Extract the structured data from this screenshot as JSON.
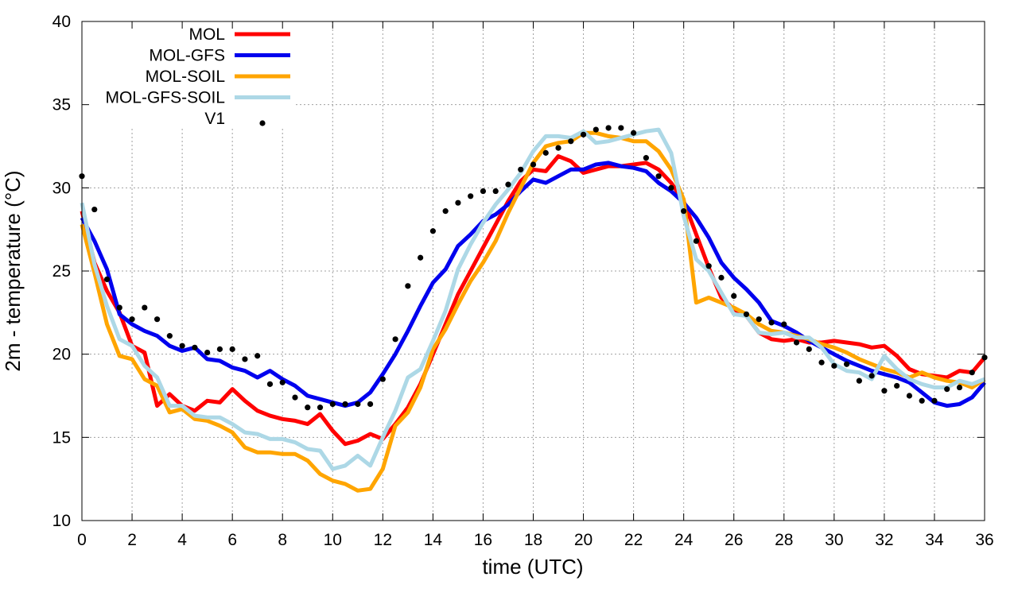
{
  "chart_data": {
    "type": "line",
    "title": "",
    "xlabel": "time (UTC)",
    "ylabel": "2m - temperature (°C)",
    "xlim": [
      0,
      36
    ],
    "ylim": [
      10,
      40
    ],
    "xticks": [
      0,
      2,
      4,
      6,
      8,
      10,
      12,
      14,
      16,
      18,
      20,
      22,
      24,
      26,
      28,
      30,
      32,
      34,
      36
    ],
    "yticks": [
      10,
      15,
      20,
      25,
      30,
      35,
      40
    ],
    "grid": true,
    "legend_position": "top-left",
    "series": [
      {
        "name": "MOL",
        "color": "#ff0000",
        "style": "line",
        "x": [
          0,
          0.5,
          1,
          1.5,
          2,
          2.5,
          3,
          3.5,
          4,
          4.5,
          5,
          5.5,
          6,
          6.5,
          7,
          7.5,
          8,
          8.5,
          9,
          9.5,
          10,
          10.5,
          11,
          11.5,
          12,
          12.5,
          13,
          13.5,
          14,
          14.5,
          15,
          15.5,
          16,
          16.5,
          17,
          17.5,
          18,
          18.5,
          19,
          19.5,
          20,
          20.5,
          21,
          21.5,
          22,
          22.5,
          23,
          23.5,
          24,
          24.5,
          25,
          25.5,
          26,
          26.5,
          27,
          27.5,
          28,
          28.5,
          29,
          29.5,
          30,
          30.5,
          31,
          31.5,
          32,
          32.5,
          33,
          33.5,
          34,
          34.5,
          35,
          35.5,
          36
        ],
        "y": [
          28.6,
          25.5,
          23.8,
          22.5,
          20.5,
          20.1,
          16.9,
          17.6,
          16.9,
          16.6,
          17.2,
          17.1,
          17.9,
          17.2,
          16.6,
          16.3,
          16.1,
          16.0,
          15.8,
          16.4,
          15.4,
          14.6,
          14.8,
          15.2,
          14.9,
          15.8,
          16.8,
          18.2,
          20.0,
          21.8,
          23.6,
          25.0,
          26.4,
          27.8,
          29.2,
          30.4,
          31.1,
          31.0,
          31.9,
          31.6,
          30.9,
          31.1,
          31.3,
          31.3,
          31.4,
          31.5,
          31.1,
          30.3,
          29.2,
          27.2,
          25.2,
          23.4,
          22.7,
          22.3,
          21.3,
          20.9,
          20.8,
          20.9,
          20.7,
          20.7,
          20.8,
          20.7,
          20.6,
          20.4,
          20.5,
          19.9,
          19.1,
          18.8,
          18.7,
          18.6,
          19.0,
          18.9,
          19.8
        ]
      },
      {
        "name": "MOL-GFS",
        "color": "#0000ee",
        "style": "line",
        "x": [
          0,
          0.5,
          1,
          1.5,
          2,
          2.5,
          3,
          3.5,
          4,
          4.5,
          5,
          5.5,
          6,
          6.5,
          7,
          7.5,
          8,
          8.5,
          9,
          9.5,
          10,
          10.5,
          11,
          11.5,
          12,
          12.5,
          13,
          13.5,
          14,
          14.5,
          15,
          15.5,
          16,
          16.5,
          17,
          17.5,
          18,
          18.5,
          19,
          19.5,
          20,
          20.5,
          21,
          21.5,
          22,
          22.5,
          23,
          23.5,
          24,
          24.5,
          25,
          25.5,
          26,
          26.5,
          27,
          27.5,
          28,
          28.5,
          29,
          29.5,
          30,
          30.5,
          31,
          31.5,
          32,
          32.5,
          33,
          33.5,
          34,
          34.5,
          35,
          35.5,
          36
        ],
        "y": [
          28.2,
          26.8,
          25.1,
          22.4,
          21.8,
          21.4,
          21.1,
          20.5,
          20.2,
          20.4,
          19.7,
          19.6,
          19.2,
          19.0,
          18.6,
          19.0,
          18.5,
          18.1,
          17.5,
          17.3,
          17.1,
          16.9,
          17.1,
          17.7,
          18.8,
          20.0,
          21.4,
          22.9,
          24.3,
          25.1,
          26.5,
          27.2,
          28.0,
          28.4,
          29.0,
          29.8,
          30.5,
          30.3,
          30.7,
          31.1,
          31.1,
          31.4,
          31.5,
          31.3,
          31.2,
          31.0,
          30.3,
          29.8,
          29.1,
          28.2,
          27.0,
          25.5,
          24.6,
          23.9,
          23.1,
          22.0,
          21.7,
          21.3,
          20.8,
          20.4,
          20.0,
          19.6,
          19.3,
          19.0,
          18.8,
          18.6,
          18.3,
          17.7,
          17.1,
          16.9,
          17.0,
          17.4,
          18.3
        ]
      },
      {
        "name": "MOL-SOIL",
        "color": "#ffa500",
        "style": "line",
        "x": [
          0,
          0.5,
          1,
          1.5,
          2,
          2.5,
          3,
          3.5,
          4,
          4.5,
          5,
          5.5,
          6,
          6.5,
          7,
          7.5,
          8,
          8.5,
          9,
          9.5,
          10,
          10.5,
          11,
          11.5,
          12,
          12.5,
          13,
          13.5,
          14,
          14.5,
          15,
          15.5,
          16,
          16.5,
          17,
          17.5,
          18,
          18.5,
          19,
          19.5,
          20,
          20.5,
          21,
          21.5,
          22,
          22.5,
          23,
          23.5,
          24,
          24.5,
          25,
          25.5,
          26,
          26.5,
          27,
          27.5,
          28,
          28.5,
          29,
          29.5,
          30,
          30.5,
          31,
          31.5,
          32,
          32.5,
          33,
          33.5,
          34,
          34.5,
          35,
          35.5,
          36
        ],
        "y": [
          27.8,
          24.9,
          21.8,
          19.9,
          19.7,
          18.5,
          18.1,
          16.5,
          16.7,
          16.1,
          16.0,
          15.7,
          15.3,
          14.4,
          14.1,
          14.1,
          14.0,
          14.0,
          13.6,
          12.8,
          12.4,
          12.2,
          11.8,
          11.9,
          13.1,
          15.7,
          16.5,
          18.0,
          20.3,
          21.5,
          23.0,
          24.4,
          25.5,
          26.8,
          28.5,
          30.0,
          31.5,
          32.5,
          32.7,
          32.8,
          33.3,
          33.3,
          33.1,
          33.0,
          32.8,
          32.8,
          32.2,
          31.1,
          29.3,
          23.1,
          23.4,
          23.1,
          22.8,
          22.4,
          21.8,
          21.4,
          21.3,
          21.1,
          20.9,
          20.6,
          20.4,
          20.1,
          19.7,
          19.4,
          19.1,
          18.9,
          18.6,
          18.9,
          18.6,
          18.4,
          18.3,
          18.0,
          18.5
        ]
      },
      {
        "name": "MOL-GFS-SOIL",
        "color": "#add8e6",
        "style": "line",
        "x": [
          0,
          0.5,
          1,
          1.5,
          2,
          2.5,
          3,
          3.5,
          4,
          4.5,
          5,
          5.5,
          6,
          6.5,
          7,
          7.5,
          8,
          8.5,
          9,
          9.5,
          10,
          10.5,
          11,
          11.5,
          12,
          12.5,
          13,
          13.5,
          14,
          14.5,
          15,
          15.5,
          16,
          16.5,
          17,
          17.5,
          18,
          18.5,
          19,
          19.5,
          20,
          20.5,
          21,
          21.5,
          22,
          22.5,
          23,
          23.5,
          24,
          24.5,
          25,
          25.5,
          26,
          26.5,
          27,
          27.5,
          28,
          28.5,
          29,
          29.5,
          30,
          30.5,
          31,
          31.5,
          32,
          32.5,
          33,
          33.5,
          34,
          34.5,
          35,
          35.5,
          36
        ],
        "y": [
          29.1,
          25.4,
          22.9,
          20.9,
          20.5,
          19.3,
          18.6,
          16.9,
          16.9,
          16.3,
          16.2,
          16.2,
          15.8,
          15.3,
          15.2,
          14.9,
          14.9,
          14.7,
          14.3,
          14.2,
          13.1,
          13.3,
          13.9,
          13.3,
          15.0,
          16.6,
          18.6,
          19.1,
          20.8,
          22.6,
          25.1,
          26.6,
          27.9,
          29.0,
          29.9,
          30.9,
          32.2,
          33.1,
          33.1,
          33.0,
          33.4,
          32.7,
          32.8,
          33.0,
          33.2,
          33.4,
          33.5,
          32.1,
          28.3,
          25.7,
          25.0,
          23.7,
          22.4,
          22.3,
          21.3,
          21.2,
          21.3,
          21.0,
          21.0,
          20.4,
          19.4,
          19.0,
          18.9,
          18.5,
          19.9,
          19.1,
          18.5,
          18.2,
          18.0,
          18.0,
          18.4,
          18.2,
          18.5
        ]
      },
      {
        "name": "V1",
        "color": "#000000",
        "style": "points",
        "x": [
          0,
          0.5,
          1,
          1.5,
          2,
          2.5,
          3,
          3.5,
          4,
          4.5,
          5,
          5.5,
          6,
          6.5,
          7,
          7.5,
          8,
          8.5,
          9,
          9.5,
          10,
          10.5,
          11,
          11.5,
          12,
          12.5,
          13,
          13.5,
          14,
          14.5,
          15,
          15.5,
          16,
          16.5,
          17,
          17.5,
          18,
          18.5,
          19,
          19.5,
          20,
          20.5,
          21,
          21.5,
          22,
          22.5,
          23,
          23.5,
          24,
          24.5,
          25,
          25.5,
          26,
          26.5,
          27,
          27.5,
          28,
          28.5,
          29,
          29.5,
          30,
          30.5,
          31,
          31.5,
          32,
          32.5,
          33,
          33.5,
          34,
          34.5,
          35,
          35.5,
          36
        ],
        "y": [
          30.7,
          28.7,
          24.5,
          22.8,
          22.1,
          22.8,
          22.1,
          21.1,
          20.5,
          20.4,
          20.1,
          20.3,
          20.3,
          19.7,
          19.9,
          18.2,
          18.3,
          17.4,
          16.8,
          16.8,
          17.0,
          17.0,
          17.0,
          17.0,
          18.5,
          20.9,
          24.1,
          25.8,
          27.4,
          28.6,
          29.1,
          29.5,
          29.8,
          29.8,
          30.2,
          31.1,
          31.4,
          32.1,
          32.4,
          32.8,
          33.2,
          33.5,
          33.6,
          33.6,
          33.3,
          31.8,
          30.7,
          30.0,
          28.6,
          26.8,
          25.3,
          24.6,
          23.5,
          22.4,
          22.1,
          21.9,
          21.8,
          20.7,
          20.3,
          19.5,
          19.3,
          19.4,
          18.4,
          18.7,
          17.8,
          18.1,
          17.5,
          17.2,
          17.2,
          17.9,
          18.0,
          18.9,
          19.8
        ]
      }
    ]
  }
}
